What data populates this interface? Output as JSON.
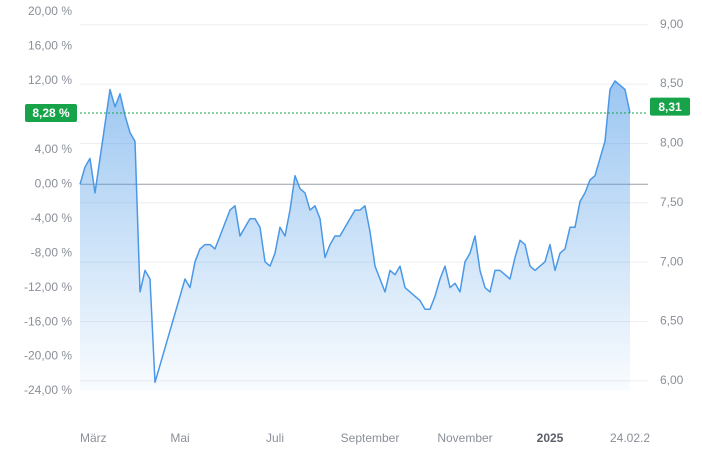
{
  "chart_data": {
    "type": "area",
    "series": [
      {
        "color": "#4a98e6",
        "values": [
          0,
          2,
          3,
          -1,
          3,
          7,
          11,
          9,
          10.5,
          8,
          6,
          5,
          -12.5,
          -10,
          -11,
          -23,
          -21,
          -19,
          -17,
          -15,
          -13,
          -11,
          -12,
          -9,
          -7.5,
          -7,
          -7,
          -7.5,
          -6,
          -4.5,
          -3,
          -2.5,
          -6,
          -5,
          -4,
          -4,
          -5,
          -9,
          -9.5,
          -8,
          -5,
          -6,
          -3,
          1,
          -0.5,
          -1,
          -3,
          -2.5,
          -4,
          -8.5,
          -7,
          -6,
          -6,
          -5,
          -4,
          -3,
          -3,
          -2.5,
          -5.5,
          -9.5,
          -11,
          -12.5,
          -10,
          -10.5,
          -9.5,
          -12,
          -12.5,
          -13,
          -13.5,
          -14.5,
          -14.5,
          -13,
          -11,
          -9.5,
          -12,
          -11.5,
          -12.5,
          -9,
          -8,
          -6,
          -10,
          -12,
          -12.5,
          -10,
          -10,
          -10.5,
          -11,
          -8.5,
          -6.5,
          -7,
          -9.5,
          -10,
          -9.5,
          -9,
          -7,
          -10,
          -8,
          -7.5,
          -5,
          -5,
          -2,
          -1,
          0.5,
          1,
          3,
          5,
          11,
          12,
          11.5,
          11,
          8.28
        ]
      }
    ],
    "xlim": [
      0,
      110
    ],
    "xticks": [
      {
        "value": 3,
        "label": "März"
      },
      {
        "value": 20,
        "label": "Mai"
      },
      {
        "value": 39,
        "label": "Juli"
      },
      {
        "value": 58,
        "label": "September"
      },
      {
        "value": 77,
        "label": "November"
      },
      {
        "value": 94,
        "label": "2025"
      },
      {
        "value": 110,
        "label": "24.02.2"
      }
    ],
    "ylim": [
      -24,
      20
    ],
    "yticks": [
      {
        "value": 20,
        "label": "20,00 %"
      },
      {
        "value": 16,
        "label": "16,00 %"
      },
      {
        "value": 12,
        "label": "12,00 %"
      },
      {
        "value": 8,
        "label": "8,00 %"
      },
      {
        "value": 4,
        "label": "4,00 %"
      },
      {
        "value": 0,
        "label": "0,00 %"
      },
      {
        "value": -4,
        "label": "-4,00 %"
      },
      {
        "value": -8,
        "label": "-8,00 %"
      },
      {
        "value": -12,
        "label": "-12,00 %"
      },
      {
        "value": -16,
        "label": "-16,00 %"
      },
      {
        "value": -20,
        "label": "-20,00 %"
      },
      {
        "value": -24,
        "label": "-24,00 %"
      }
    ],
    "y2lim": [
      5.915,
      9.107
    ],
    "y2ticks": [
      {
        "value": 9,
        "label": "9,00"
      },
      {
        "value": 8.5,
        "label": "8,50"
      },
      {
        "value": 8,
        "label": "8,00"
      },
      {
        "value": 7.5,
        "label": "7,50"
      },
      {
        "value": 7,
        "label": "7,00"
      },
      {
        "value": 6.5,
        "label": "6,50"
      },
      {
        "value": 6,
        "label": "6,00"
      }
    ],
    "last_change": {
      "value": 8.28,
      "label": "8,28 %"
    },
    "last_price": {
      "value": 8.31,
      "label": "8,31"
    },
    "badge_color": "#17a34a",
    "grid": true
  }
}
